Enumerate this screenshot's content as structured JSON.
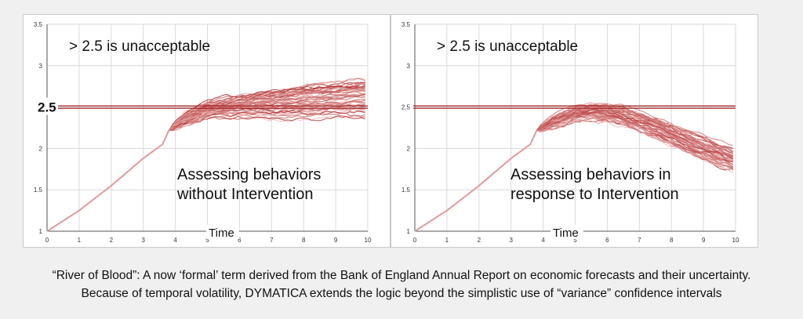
{
  "colors": {
    "threshold_line": "#a11f1f",
    "trace_dark": "#b03030",
    "trace_light": "#f1c0c0",
    "base_line": "#e39a9a",
    "grid": "#d9d9d9",
    "axis": "#555555"
  },
  "chart_data": [
    {
      "type": "line",
      "title": "",
      "annotation_threshold_text": "> 2.5 is unacceptable",
      "annotation_body": [
        "Assessing behaviors",
        "without Intervention"
      ],
      "xlabel": "Time",
      "ylabel": "",
      "xlim": [
        0,
        10
      ],
      "ylim": [
        1,
        3.5
      ],
      "x_ticks": [
        "0",
        "1",
        "2",
        "3",
        "4",
        "5",
        "6",
        "7",
        "8",
        "9",
        "10"
      ],
      "y_ticks": [
        "1",
        "1.5",
        "2",
        "2.5",
        "3",
        "3.5"
      ],
      "threshold": {
        "value": 2.5,
        "label": "2.5"
      },
      "grid": true,
      "base_path": {
        "x": [
          0,
          1,
          2,
          3,
          3.6,
          3.8
        ],
        "y": [
          1.0,
          1.25,
          1.55,
          1.88,
          2.05,
          2.22
        ]
      },
      "bundle": {
        "start_x": 3.8,
        "start_y": 2.22,
        "center": {
          "x": [
            3.8,
            4.3,
            5,
            6,
            7,
            8,
            9,
            10
          ],
          "y": [
            2.22,
            2.35,
            2.46,
            2.5,
            2.52,
            2.55,
            2.58,
            2.6
          ]
        },
        "spread": {
          "x": [
            3.8,
            4.3,
            5,
            6,
            7,
            8,
            9,
            10
          ],
          "y": [
            0.0,
            0.07,
            0.1,
            0.14,
            0.18,
            0.2,
            0.22,
            0.25
          ]
        },
        "count": 45
      }
    },
    {
      "type": "line",
      "title": "",
      "annotation_threshold_text": "> 2.5 is unacceptable",
      "annotation_body": [
        "Assessing behaviors in",
        "response to Intervention"
      ],
      "xlabel": "Time",
      "ylabel": "",
      "xlim": [
        0,
        10
      ],
      "ylim": [
        1,
        3.5
      ],
      "x_ticks": [
        "0",
        "1",
        "2",
        "3",
        "4",
        "5",
        "6",
        "7",
        "8",
        "9",
        "10"
      ],
      "y_ticks": [
        "1",
        "1.5",
        "2",
        "2.5",
        "3",
        "3.5"
      ],
      "threshold": {
        "value": 2.5,
        "label": ""
      },
      "grid": true,
      "base_path": {
        "x": [
          0,
          1,
          2,
          3,
          3.6,
          3.8
        ],
        "y": [
          1.0,
          1.25,
          1.55,
          1.88,
          2.05,
          2.22
        ]
      },
      "bundle": {
        "start_x": 3.8,
        "start_y": 2.22,
        "center": {
          "x": [
            3.8,
            4.3,
            5,
            5.6,
            6.5,
            7.5,
            8.5,
            9.5,
            10
          ],
          "y": [
            2.22,
            2.32,
            2.42,
            2.44,
            2.38,
            2.25,
            2.08,
            1.92,
            1.85
          ]
        },
        "spread": {
          "x": [
            3.8,
            4.3,
            5,
            5.6,
            6.5,
            7.5,
            8.5,
            9.5,
            10
          ],
          "y": [
            0.0,
            0.06,
            0.08,
            0.09,
            0.1,
            0.11,
            0.12,
            0.12,
            0.12
          ]
        },
        "count": 45
      }
    }
  ],
  "caption": {
    "line1": "“River of Blood”: A now ‘formal’ term derived from the Bank of England Annual Report on economic forecasts and their uncertainty.",
    "line2": "Because of temporal volatility, DYMATICA extends the logic beyond the simplistic use of “variance” confidence intervals"
  }
}
